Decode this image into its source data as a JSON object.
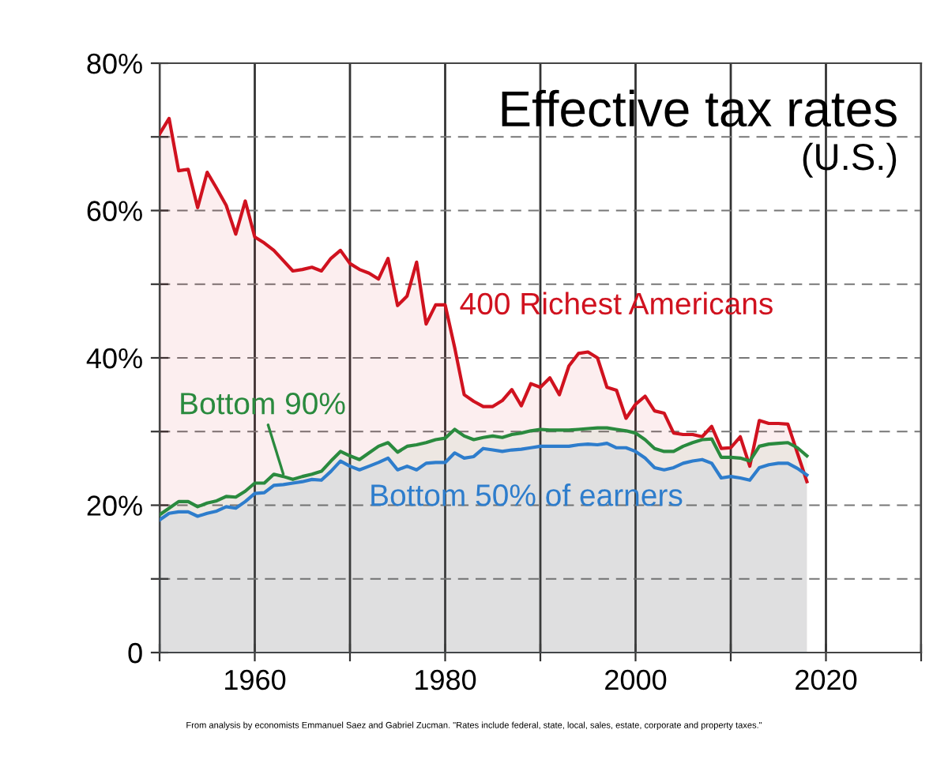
{
  "chart_data": {
    "type": "area",
    "title": "Effective tax rates",
    "subtitle": "(U.S.)",
    "x": [
      1950,
      1951,
      1952,
      1953,
      1954,
      1955,
      1956,
      1957,
      1958,
      1959,
      1960,
      1961,
      1962,
      1963,
      1964,
      1965,
      1966,
      1967,
      1968,
      1969,
      1970,
      1971,
      1972,
      1973,
      1974,
      1975,
      1976,
      1977,
      1978,
      1979,
      1980,
      1981,
      1982,
      1983,
      1984,
      1985,
      1986,
      1987,
      1988,
      1989,
      1990,
      1991,
      1992,
      1993,
      1994,
      1995,
      1996,
      1997,
      1998,
      1999,
      2000,
      2001,
      2002,
      2003,
      2004,
      2005,
      2006,
      2007,
      2008,
      2009,
      2010,
      2011,
      2012,
      2013,
      2014,
      2015,
      2016,
      2017,
      2018
    ],
    "series": [
      {
        "name": "400 Richest Americans",
        "color": "#d0121f",
        "values": [
          70.4,
          72.5,
          65.4,
          65.6,
          60.4,
          65.2,
          63.0,
          60.7,
          56.8,
          61.3,
          56.4,
          55.6,
          54.6,
          53.2,
          51.8,
          52.0,
          52.3,
          51.8,
          53.5,
          54.6,
          52.8,
          52.0,
          51.5,
          50.7,
          53.5,
          47.1,
          48.4,
          53.0,
          44.6,
          47.2,
          47.2,
          41.4,
          35.0,
          34.1,
          33.4,
          33.4,
          34.2,
          35.7,
          33.5,
          36.5,
          36.0,
          37.3,
          35.0,
          38.9,
          40.6,
          40.8,
          40.0,
          36.0,
          35.6,
          31.8,
          33.7,
          34.8,
          32.8,
          32.5,
          29.8,
          29.6,
          29.6,
          29.3,
          30.7,
          27.7,
          27.8,
          29.3,
          25.3,
          31.5,
          31.1,
          31.1,
          31.0,
          27.1,
          23.2
        ]
      },
      {
        "name": "Bottom 90%",
        "color": "#2a8a3e",
        "values": [
          18.7,
          19.6,
          20.5,
          20.5,
          19.8,
          20.3,
          20.6,
          21.2,
          21.1,
          21.9,
          23.0,
          23.0,
          24.2,
          23.9,
          23.5,
          23.9,
          24.2,
          24.6,
          26.0,
          27.3,
          26.7,
          26.2,
          27.1,
          28.0,
          28.5,
          27.2,
          28.0,
          28.2,
          28.5,
          28.9,
          29.1,
          30.3,
          29.4,
          28.9,
          29.2,
          29.4,
          29.2,
          29.6,
          29.8,
          30.1,
          30.3,
          30.2,
          30.2,
          30.2,
          30.3,
          30.4,
          30.5,
          30.5,
          30.3,
          30.1,
          29.8,
          28.9,
          27.7,
          27.3,
          27.3,
          28.0,
          28.5,
          28.9,
          29.0,
          26.5,
          26.5,
          26.4,
          26.0,
          28.0,
          28.3,
          28.4,
          28.5,
          27.8,
          26.7
        ]
      },
      {
        "name": "Bottom 50% of earners",
        "color": "#2e7dcc",
        "values": [
          18.0,
          18.9,
          19.1,
          19.1,
          18.5,
          18.9,
          19.2,
          19.8,
          19.6,
          20.5,
          21.6,
          21.7,
          22.7,
          22.8,
          23.0,
          23.2,
          23.5,
          23.4,
          24.6,
          26.0,
          25.3,
          24.8,
          25.3,
          25.8,
          26.4,
          24.8,
          25.3,
          24.8,
          25.7,
          25.8,
          25.8,
          27.1,
          26.4,
          26.6,
          27.7,
          27.5,
          27.3,
          27.5,
          27.6,
          27.8,
          28.0,
          28.0,
          28.0,
          28.0,
          28.2,
          28.3,
          28.2,
          28.4,
          27.8,
          27.8,
          27.3,
          26.4,
          25.1,
          24.8,
          25.1,
          25.7,
          26.0,
          26.2,
          25.7,
          23.7,
          23.9,
          23.7,
          23.4,
          25.1,
          25.5,
          25.7,
          25.7,
          25.0,
          24.1
        ]
      }
    ],
    "xlim": [
      1950,
      2030
    ],
    "xticks": [
      {
        "value": 1950,
        "label": null
      },
      1960,
      {
        "value": 1970,
        "label": null
      },
      1980,
      {
        "value": 1990,
        "label": null
      },
      2000,
      {
        "value": 2010,
        "label": null
      },
      2020,
      {
        "value": 2030,
        "label": null
      }
    ],
    "ylim": [
      0,
      80
    ],
    "yticks": [
      0,
      {
        "value": 10,
        "label": null
      },
      {
        "value": 20,
        "label": "20%"
      },
      {
        "value": 30,
        "label": null
      },
      {
        "value": 40,
        "label": "40%"
      },
      {
        "value": 50,
        "label": null
      },
      {
        "value": 60,
        "label": "60%"
      },
      {
        "value": 70,
        "label": null
      },
      {
        "value": 80,
        "label": "80%"
      }
    ],
    "grid": true,
    "legend": false,
    "annotations": [
      "From analysis by economists Emmanuel Saez and Gabriel Zucman. \"Rates include federal, state, local, sales, estate, corporate and property taxes.\""
    ]
  }
}
